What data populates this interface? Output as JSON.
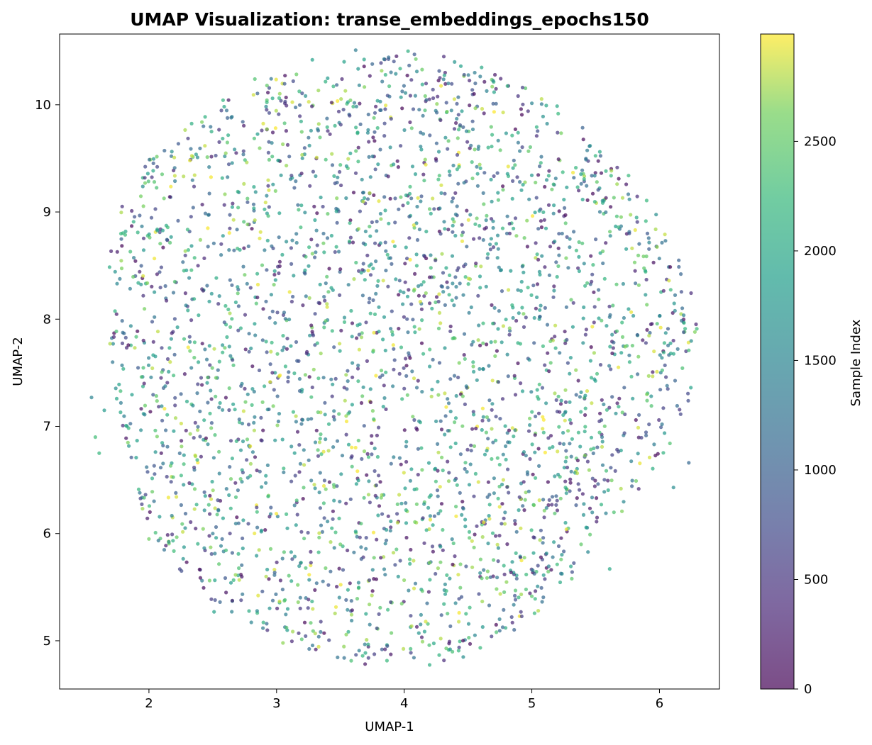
{
  "chart_data": {
    "type": "scatter",
    "title": "UMAP Visualization: transe_embeddings_epochs150",
    "xlabel": "UMAP-1",
    "ylabel": "UMAP-2",
    "xlim": [
      1.3,
      6.47
    ],
    "ylim": [
      4.55,
      10.66
    ],
    "xticks": [
      2,
      3,
      4,
      5,
      6
    ],
    "yticks": [
      5,
      6,
      7,
      8,
      9,
      10
    ],
    "grid": false,
    "point_alpha": 0.7,
    "colormap": "viridis",
    "colorbar": {
      "label": "Sample Index",
      "min": 0,
      "max": 2990,
      "ticks": [
        0,
        500,
        1000,
        1500,
        2000,
        2500
      ]
    },
    "cluster": {
      "shape": "roughly circular cloud",
      "center": [
        3.9,
        7.68
      ],
      "radius_x": 2.3,
      "radius_y": 2.85,
      "approx_point_count": 2990,
      "color_distribution": "uniformly mixed sample indices across the cloud"
    },
    "points": {
      "x": [
        3.62,
        4.03,
        4.08,
        4.31,
        1.55,
        1.58,
        1.65,
        1.61,
        3.72,
        3.53,
        2.51,
        2.0,
        3.85,
        4.36,
        5.05,
        6.23,
        6.11,
        6.02,
        5.51,
        5.61,
        2.83,
        3.05,
        4.72,
        4.47,
        3.28,
        2.49,
        1.97,
        3.01,
        3.79,
        4.91,
        5.98,
        5.55
      ],
      "y": [
        10.51,
        10.5,
        10.47,
        10.45,
        7.27,
        6.9,
        7.15,
        6.75,
        4.84,
        4.84,
        5.27,
        5.95,
        4.92,
        4.92,
        5.28,
        6.66,
        6.43,
        7.02,
        9.28,
        5.67,
        10.24,
        4.98,
        10.01,
        10.28,
        10.42,
        9.75,
        9.27,
        8.49,
        8.31,
        7.77,
        7.51,
        6.9
      ],
      "c": [
        1400,
        2100,
        900,
        400,
        1500,
        2300,
        1800,
        2200,
        600,
        1200,
        1900,
        2600,
        300,
        1700,
        2800,
        1100,
        1600,
        1300,
        2500,
        2000,
        2400,
        2700,
        1000,
        800,
        1900,
        2100,
        2600,
        500,
        1500,
        2200,
        2900,
        1300
      ]
    }
  }
}
